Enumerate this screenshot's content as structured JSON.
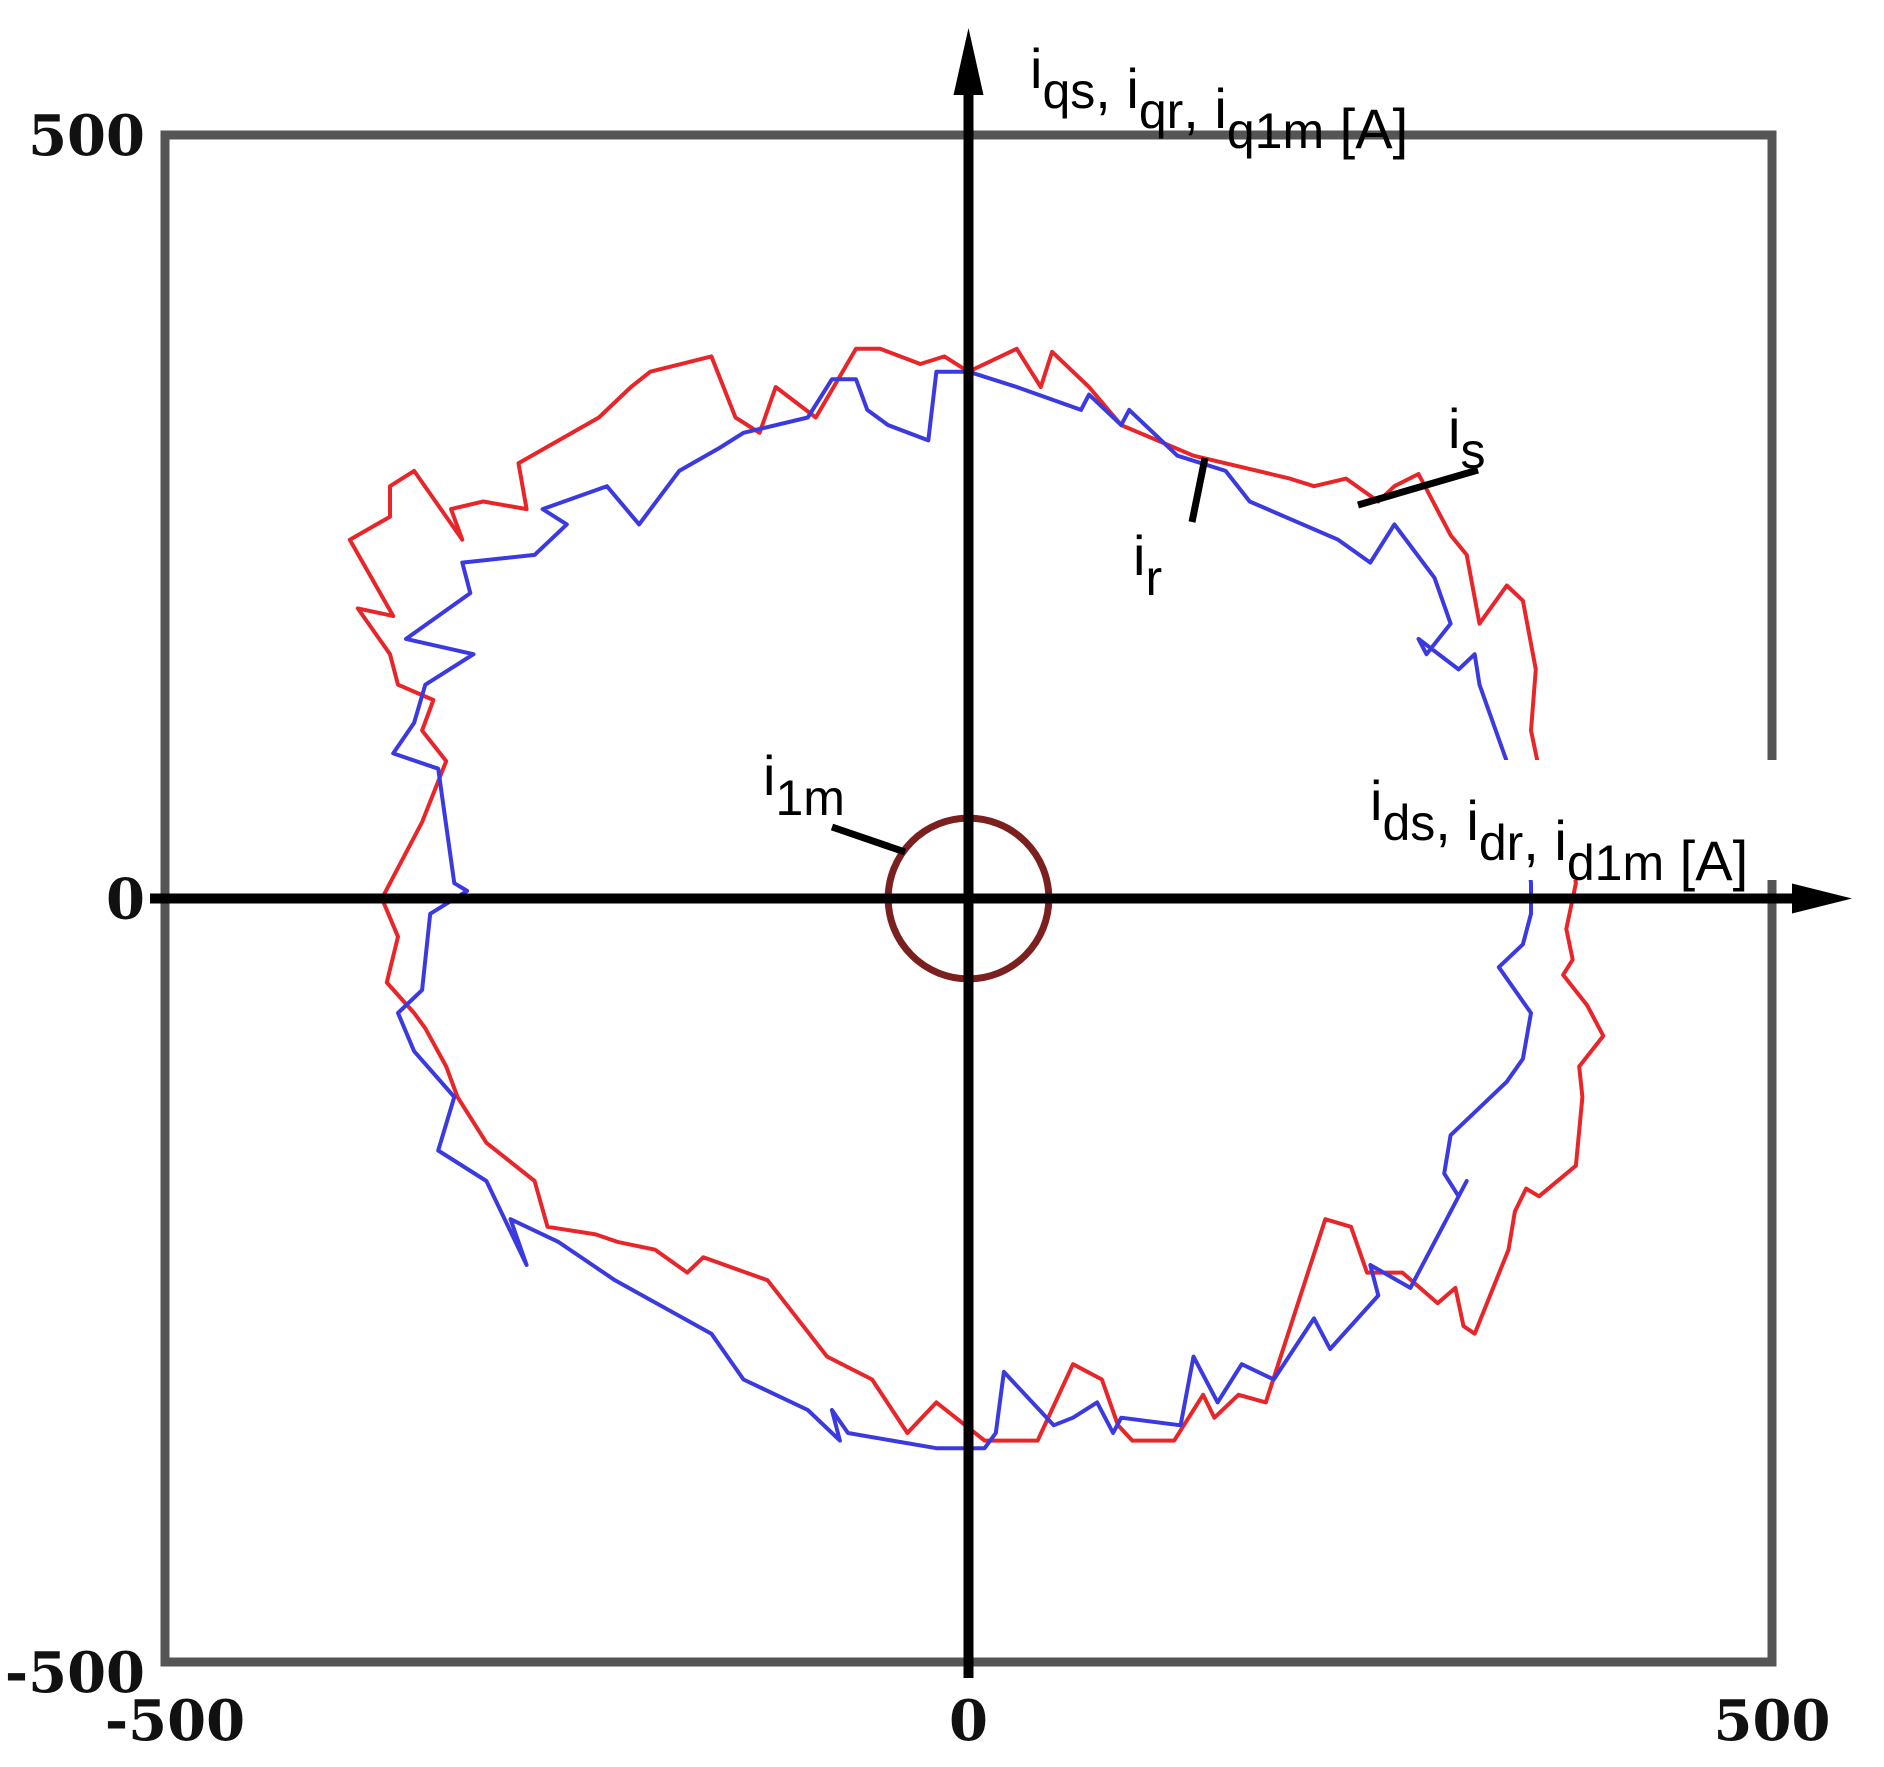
{
  "chart_data": {
    "type": "line",
    "xlim": [
      -500,
      500
    ],
    "ylim": [
      -500,
      500
    ],
    "grid": false,
    "x_ticks": [
      {
        "value": -500,
        "label": "-500"
      },
      {
        "value": 0,
        "label": "0"
      },
      {
        "value": 500,
        "label": "500"
      }
    ],
    "y_ticks": [
      {
        "value": 500,
        "label": "500"
      },
      {
        "value": 0,
        "label": "0"
      },
      {
        "value": -500,
        "label": "-500"
      }
    ],
    "xlabel": {
      "parts": [
        [
          "i",
          "ds"
        ],
        [
          ", i",
          "dr"
        ],
        [
          ", i",
          "d1m"
        ]
      ],
      "unit": " [A]"
    },
    "ylabel": {
      "parts": [
        [
          "i",
          "qs"
        ],
        [
          ", i",
          "qr"
        ],
        [
          ", i",
          "q1m"
        ]
      ],
      "unit": " [A]"
    },
    "annotations": [
      {
        "main": "i",
        "sub": "s",
        "series": "i_s"
      },
      {
        "main": "i",
        "sub": "r",
        "series": "i_r"
      },
      {
        "main": "i",
        "sub": "1m",
        "series": "i_1m"
      }
    ],
    "series": [
      {
        "key": "i_s",
        "color": "#e8262a",
        "x": [
          0,
          30,
          45,
          52,
          75,
          95,
          140,
          200,
          215,
          235,
          255,
          265,
          280,
          300,
          310,
          318,
          335,
          345,
          353,
          350,
          355,
          370,
          378,
          372,
          376,
          370,
          385,
          395,
          380,
          382,
          378,
          355,
          347,
          340,
          336,
          315,
          308,
          303,
          292,
          270,
          248,
          238,
          222,
          185,
          168,
          153,
          146,
          128,
          102,
          93,
          83,
          65,
          43,
          10,
          -20,
          -38,
          -60,
          -88,
          -125,
          -165,
          -175,
          -195,
          -218,
          -232,
          -262,
          -270,
          -300,
          -318,
          -325,
          -338,
          -345,
          -362,
          -355,
          -365,
          -340,
          -325,
          -340,
          -333,
          -355,
          -360,
          -380,
          -358,
          -385,
          -360,
          -360,
          -345,
          -315,
          -322,
          -302,
          -275,
          -280,
          -230,
          -210,
          -198,
          -160,
          -145,
          -130,
          -120,
          -95,
          -70,
          -55,
          -30,
          -15,
          0
        ],
        "y": [
          345,
          360,
          335,
          358,
          335,
          310,
          290,
          275,
          270,
          275,
          260,
          270,
          278,
          238,
          225,
          180,
          205,
          195,
          150,
          110,
          85,
          62,
          10,
          -20,
          -40,
          -50,
          -70,
          -90,
          -110,
          -130,
          -175,
          -195,
          -190,
          -205,
          -230,
          -285,
          -280,
          -255,
          -265,
          -245,
          -245,
          -215,
          -210,
          -330,
          -325,
          -340,
          -325,
          -355,
          -355,
          -345,
          -315,
          -305,
          -355,
          -355,
          -330,
          -350,
          -315,
          -300,
          -250,
          -235,
          -245,
          -230,
          -225,
          -220,
          -215,
          -185,
          -160,
          -130,
          -110,
          -85,
          -75,
          -55,
          -25,
          0,
          50,
          90,
          110,
          130,
          140,
          160,
          190,
          185,
          235,
          250,
          270,
          280,
          235,
          255,
          260,
          255,
          285,
          315,
          335,
          345,
          355,
          315,
          305,
          335,
          315,
          360,
          360,
          350,
          355,
          345
        ]
      },
      {
        "key": "i_r",
        "color": "#3a3ae0",
        "x": [
          0,
          30,
          70,
          75,
          95,
          100,
          130,
          160,
          175,
          230,
          250,
          265,
          290,
          300,
          285,
          280,
          305,
          315,
          318,
          345,
          350,
          350,
          345,
          330,
          350,
          345,
          335,
          315,
          300,
          296,
          305,
          310,
          295,
          275,
          250,
          255,
          225,
          215,
          190,
          170,
          155,
          140,
          132,
          95,
          90,
          80,
          65,
          53,
          22,
          17,
          10,
          -20,
          -75,
          -85,
          -80,
          -100,
          -140,
          -160,
          -220,
          -255,
          -285,
          -275,
          -300,
          -330,
          -320,
          -345,
          -355,
          -340,
          -335,
          -312,
          -320,
          -330,
          -358,
          -345,
          -338,
          -308,
          -350,
          -310,
          -315,
          -270,
          -250,
          -265,
          -225,
          -205,
          -180,
          -155,
          -140,
          -100,
          -85,
          -70,
          -63,
          -50,
          -25,
          -20,
          0
        ],
        "y": [
          345,
          335,
          320,
          330,
          310,
          320,
          290,
          280,
          260,
          235,
          220,
          245,
          210,
          180,
          160,
          170,
          150,
          160,
          140,
          60,
          10,
          -10,
          -30,
          -45,
          -75,
          -105,
          -120,
          -140,
          -155,
          -180,
          -195,
          -185,
          -215,
          -255,
          -240,
          -260,
          -295,
          -275,
          -315,
          -305,
          -330,
          -300,
          -345,
          -340,
          -350,
          -330,
          -340,
          -345,
          -310,
          -350,
          -360,
          -360,
          -350,
          -335,
          -355,
          -335,
          -315,
          -285,
          -250,
          -225,
          -210,
          -240,
          -185,
          -165,
          -130,
          -100,
          -75,
          -60,
          -10,
          5,
          10,
          85,
          95,
          115,
          140,
          160,
          170,
          200,
          220,
          225,
          245,
          255,
          270,
          245,
          280,
          295,
          305,
          315,
          340,
          340,
          320,
          310,
          300,
          345,
          345
        ]
      },
      {
        "key": "i_1m",
        "color": "#7b1f1f",
        "type": "circle",
        "center": [
          0,
          0
        ],
        "radius": 50
      }
    ]
  }
}
